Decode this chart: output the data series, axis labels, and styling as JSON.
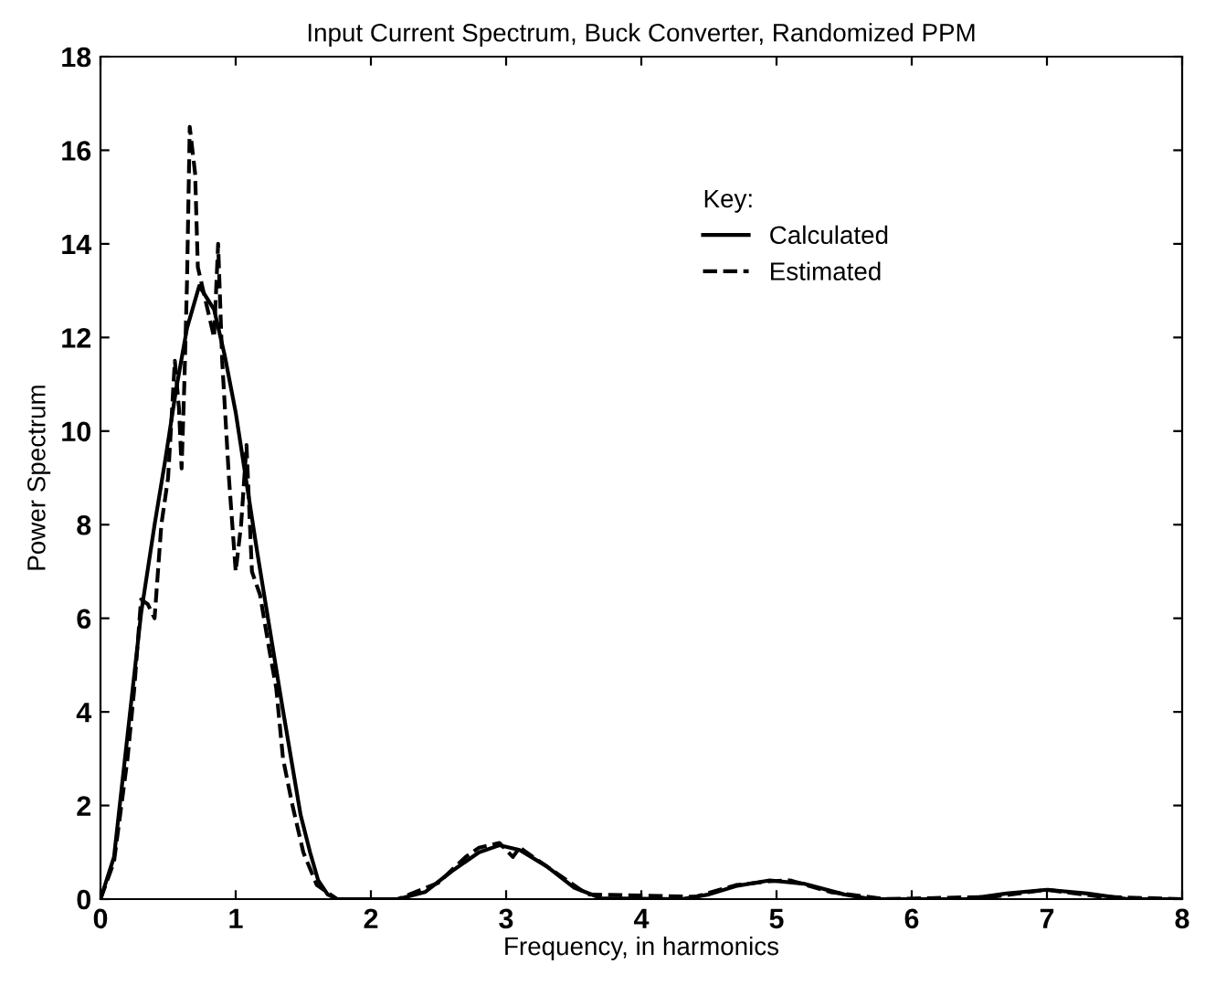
{
  "chart_data": {
    "type": "line",
    "title": "Input Current Spectrum, Buck Converter, Randomized PPM",
    "xlabel": "Frequency, in harmonics",
    "ylabel": "Power Spectrum",
    "legend_title": "Key:",
    "legend": "top right",
    "grid": false,
    "xlim": [
      0,
      8
    ],
    "ylim": [
      0,
      18
    ],
    "xticks": [
      0,
      1,
      2,
      3,
      4,
      5,
      6,
      7,
      8
    ],
    "yticks": [
      0,
      2,
      4,
      6,
      8,
      10,
      12,
      14,
      16,
      18
    ],
    "series": [
      {
        "name": "Calculated",
        "color": "#000000",
        "line_style": "solid",
        "x": [
          0,
          0.1,
          0.2,
          0.3,
          0.4,
          0.48,
          0.56,
          0.64,
          0.73,
          0.84,
          0.92,
          1.0,
          1.08,
          1.16,
          1.25,
          1.34,
          1.41,
          1.48,
          1.55,
          1.61,
          1.68,
          1.75,
          2.2,
          2.4,
          2.6,
          2.8,
          2.95,
          3.1,
          3.3,
          3.5,
          3.7,
          4.3,
          4.5,
          4.7,
          4.95,
          5.2,
          5.5,
          5.7,
          6.4,
          6.7,
          7.0,
          7.3,
          7.6,
          8.0
        ],
        "values": [
          0,
          0.9,
          3.5,
          6.1,
          8.0,
          9.4,
          10.9,
          12.2,
          13.1,
          12.6,
          11.6,
          10.4,
          8.9,
          7.4,
          5.8,
          4.2,
          3.0,
          1.8,
          1.0,
          0.4,
          0.1,
          0,
          0,
          0.15,
          0.6,
          1.0,
          1.15,
          1.05,
          0.7,
          0.25,
          0.02,
          0,
          0.1,
          0.28,
          0.4,
          0.33,
          0.1,
          0,
          0,
          0.12,
          0.2,
          0.12,
          0,
          0
        ]
      },
      {
        "name": "Estimated",
        "color": "#000000",
        "line_style": "dashed",
        "x": [
          0,
          0.1,
          0.2,
          0.25,
          0.3,
          0.35,
          0.4,
          0.45,
          0.5,
          0.55,
          0.58,
          0.6,
          0.62,
          0.64,
          0.66,
          0.7,
          0.72,
          0.76,
          0.8,
          0.84,
          0.87,
          0.9,
          0.95,
          1.0,
          1.04,
          1.08,
          1.12,
          1.18,
          1.25,
          1.3,
          1.35,
          1.42,
          1.5,
          1.6,
          1.75,
          2.2,
          2.5,
          2.7,
          2.8,
          2.95,
          3.05,
          3.1,
          3.3,
          3.6,
          4.4,
          4.7,
          4.95,
          5.1,
          5.4,
          5.8,
          6.6,
          7.0,
          7.4,
          8.0
        ],
        "values": [
          0,
          0.8,
          3.0,
          4.5,
          6.4,
          6.3,
          6.0,
          8.0,
          9.0,
          11.5,
          10.5,
          9.2,
          11.0,
          13.2,
          16.5,
          15.5,
          13.5,
          13.0,
          12.5,
          12.0,
          14.0,
          11.5,
          9.0,
          7.0,
          8.0,
          9.7,
          7.0,
          6.5,
          5.3,
          4.5,
          3.0,
          2.0,
          1.0,
          0.3,
          0,
          0,
          0.35,
          0.9,
          1.1,
          1.2,
          0.9,
          1.1,
          0.7,
          0.1,
          0.05,
          0.3,
          0.38,
          0.4,
          0.15,
          0,
          0.05,
          0.2,
          0.05,
          0
        ]
      }
    ]
  }
}
